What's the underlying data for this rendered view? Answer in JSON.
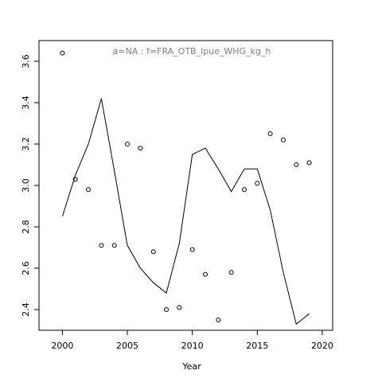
{
  "chart_data": {
    "type": "scatter",
    "title": "a=NA  :  f=FRA_OTB_lpue_WHG_kg_h",
    "xlabel": "Year",
    "ylabel": "",
    "xlim": [
      1998.2,
      2020.8
    ],
    "ylim": [
      2.3,
      3.7
    ],
    "x_ticks": [
      2000,
      2005,
      2010,
      2015,
      2020
    ],
    "y_ticks": [
      2.4,
      2.6,
      2.8,
      3.0,
      3.2,
      3.4,
      3.6
    ],
    "x_tick_labels": [
      "2000",
      "2005",
      "2010",
      "2015",
      "2020"
    ],
    "y_tick_labels": [
      "2.4",
      "2.6",
      "2.8",
      "3.0",
      "3.2",
      "3.4",
      "3.6"
    ],
    "grid": false,
    "series": [
      {
        "type": "scatter",
        "marker": "open-circle",
        "x": [
          2000,
          2001,
          2002,
          2003,
          2004,
          2005,
          2006,
          2007,
          2008,
          2009,
          2010,
          2011,
          2012,
          2013,
          2014,
          2015,
          2016,
          2017,
          2018,
          2019
        ],
        "y": [
          3.64,
          3.03,
          2.98,
          2.71,
          2.71,
          3.2,
          3.18,
          2.68,
          2.4,
          2.41,
          2.69,
          2.57,
          2.35,
          2.58,
          2.98,
          3.01,
          3.25,
          3.22,
          3.1,
          3.11
        ]
      },
      {
        "type": "line",
        "x": [
          2000,
          2001,
          2002,
          2003,
          2004,
          2005,
          2006,
          2007,
          2008,
          2009,
          2010,
          2011,
          2012,
          2013,
          2014,
          2015,
          2016,
          2017,
          2018,
          2019
        ],
        "y": [
          2.85,
          3.05,
          3.2,
          3.42,
          3.07,
          2.71,
          2.6,
          2.53,
          2.48,
          2.72,
          3.15,
          3.18,
          3.08,
          2.97,
          3.08,
          3.08,
          2.88,
          2.58,
          2.33,
          2.38
        ]
      }
    ]
  }
}
